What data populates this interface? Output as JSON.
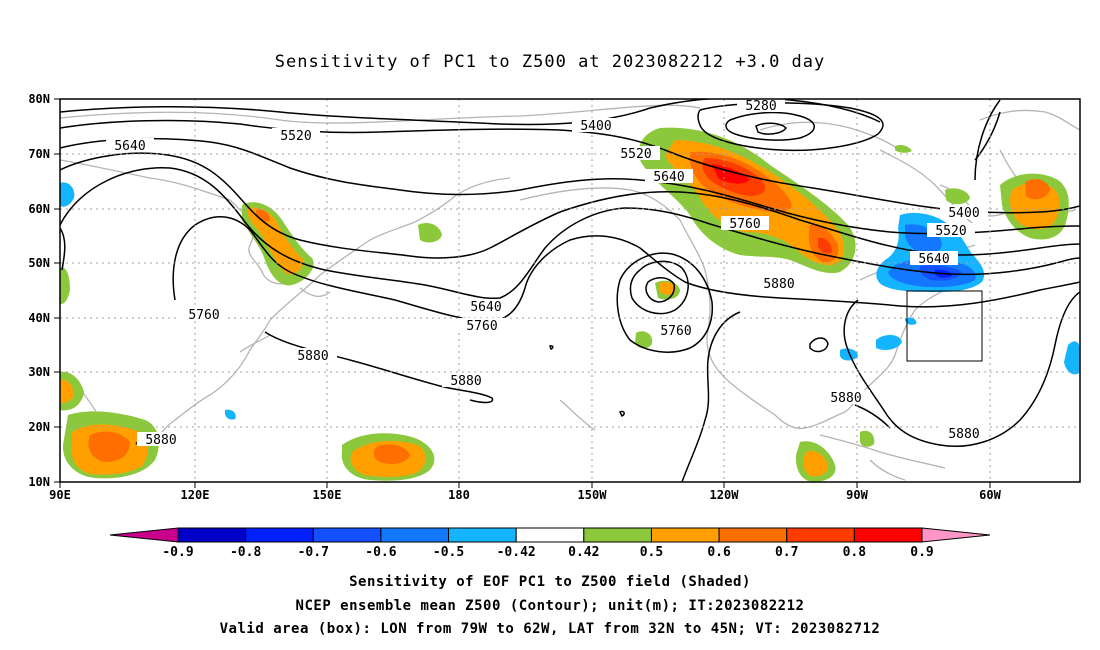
{
  "title": "Sensitivity of PC1 to Z500 at 2023082212 +3.0 day",
  "axes": {
    "lon_ticks": [
      "90E",
      "120E",
      "150E",
      "180",
      "150W",
      "120W",
      "90W",
      "60W"
    ],
    "lat_ticks": [
      "80N",
      "70N",
      "60N",
      "50N",
      "40N",
      "30N",
      "20N",
      "10N"
    ]
  },
  "contour_labels": [
    "5280",
    "5400",
    "5520",
    "5640",
    "5760",
    "5880",
    "5520",
    "5640",
    "5760",
    "5880",
    "5640",
    "5760",
    "5880",
    "5880",
    "5400",
    "5520",
    "5640",
    "5760",
    "5760",
    "5880",
    "5520",
    "5640",
    "5880",
    "5880",
    "5880"
  ],
  "colorbar": {
    "labels": [
      "-0.9",
      "-0.8",
      "-0.7",
      "-0.6",
      "-0.5",
      "-0.42",
      "0.42",
      "0.5",
      "0.6",
      "0.7",
      "0.8",
      "0.9"
    ],
    "colors": [
      "#0000c8",
      "#0020ff",
      "#1450ff",
      "#1478ff",
      "#14b4ff",
      "#ffffff",
      "#8cc83c",
      "#ffa000",
      "#ff6e00",
      "#ff3c00",
      "#ff0000"
    ],
    "low_end_color": "#c8008c",
    "high_end_color": "#ff96c8"
  },
  "caption": {
    "line1": "Sensitivity of EOF PC1 to Z500 field (Shaded)",
    "line2": "NCEP ensemble mean Z500 (Contour); unit(m); IT:2023082212",
    "line3": "Valid area (box): LON from 79W to 62W, LAT from 32N to 45N; VT: 2023082712"
  }
}
